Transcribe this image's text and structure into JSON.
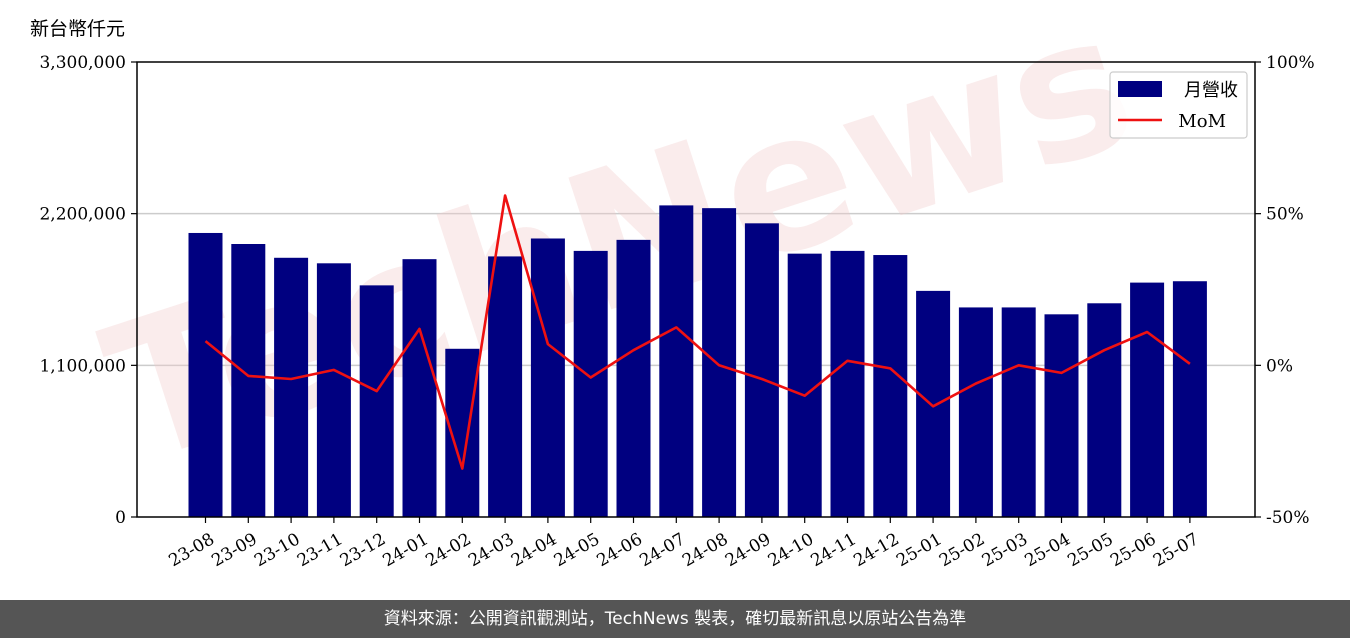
{
  "unit_label": "新台幣仟元",
  "watermark": "TechNews",
  "footer": "資料來源：公開資訊觀測站，TechNews 製表，確切最新訊息以原站公告為準",
  "colors": {
    "bar": "#000080",
    "line": "#ee1111",
    "footer_bg": "#555555",
    "grid": "#cccccc"
  },
  "chart_data": {
    "type": "bar",
    "categories": [
      "23-08",
      "23-09",
      "23-10",
      "23-11",
      "23-12",
      "24-01",
      "24-02",
      "24-03",
      "24-04",
      "24-05",
      "24-06",
      "24-07",
      "24-08",
      "24-09",
      "24-10",
      "24-11",
      "24-12",
      "25-01",
      "25-02",
      "25-03",
      "25-04",
      "25-05",
      "25-06",
      "25-07"
    ],
    "y_left": {
      "ylim": [
        0,
        3300000
      ],
      "ticks": [
        0,
        1100000,
        2200000,
        3300000
      ],
      "tick_labels": [
        "0",
        "1,100,000",
        "2,200,000",
        "3,300,000"
      ]
    },
    "y_right": {
      "ylim": [
        -50,
        100
      ],
      "ticks": [
        -50,
        0,
        50,
        100
      ],
      "tick_labels": [
        "-50%",
        "0%",
        "50%",
        "100%"
      ]
    },
    "grid": "horizontal",
    "legend_position": "top-right",
    "series": [
      {
        "name": "月營收",
        "type": "bar",
        "axis": "left",
        "values": [
          2060000,
          1980000,
          1880000,
          1840000,
          1680000,
          1870000,
          1220000,
          1890000,
          2020000,
          1930000,
          2010000,
          2260000,
          2240000,
          2130000,
          1910000,
          1930000,
          1900000,
          1640000,
          1520000,
          1520000,
          1470000,
          1550000,
          1700000,
          1710000
        ]
      },
      {
        "name": "MoM",
        "type": "line",
        "axis": "right",
        "values": [
          8,
          -3.5,
          -4.5,
          -1.5,
          -8.5,
          12,
          -34,
          56,
          7,
          -4,
          5,
          12.5,
          0,
          -4.5,
          -10,
          1.5,
          -1,
          -13.5,
          -6,
          0,
          -2.5,
          5,
          11,
          0.5
        ]
      }
    ]
  }
}
